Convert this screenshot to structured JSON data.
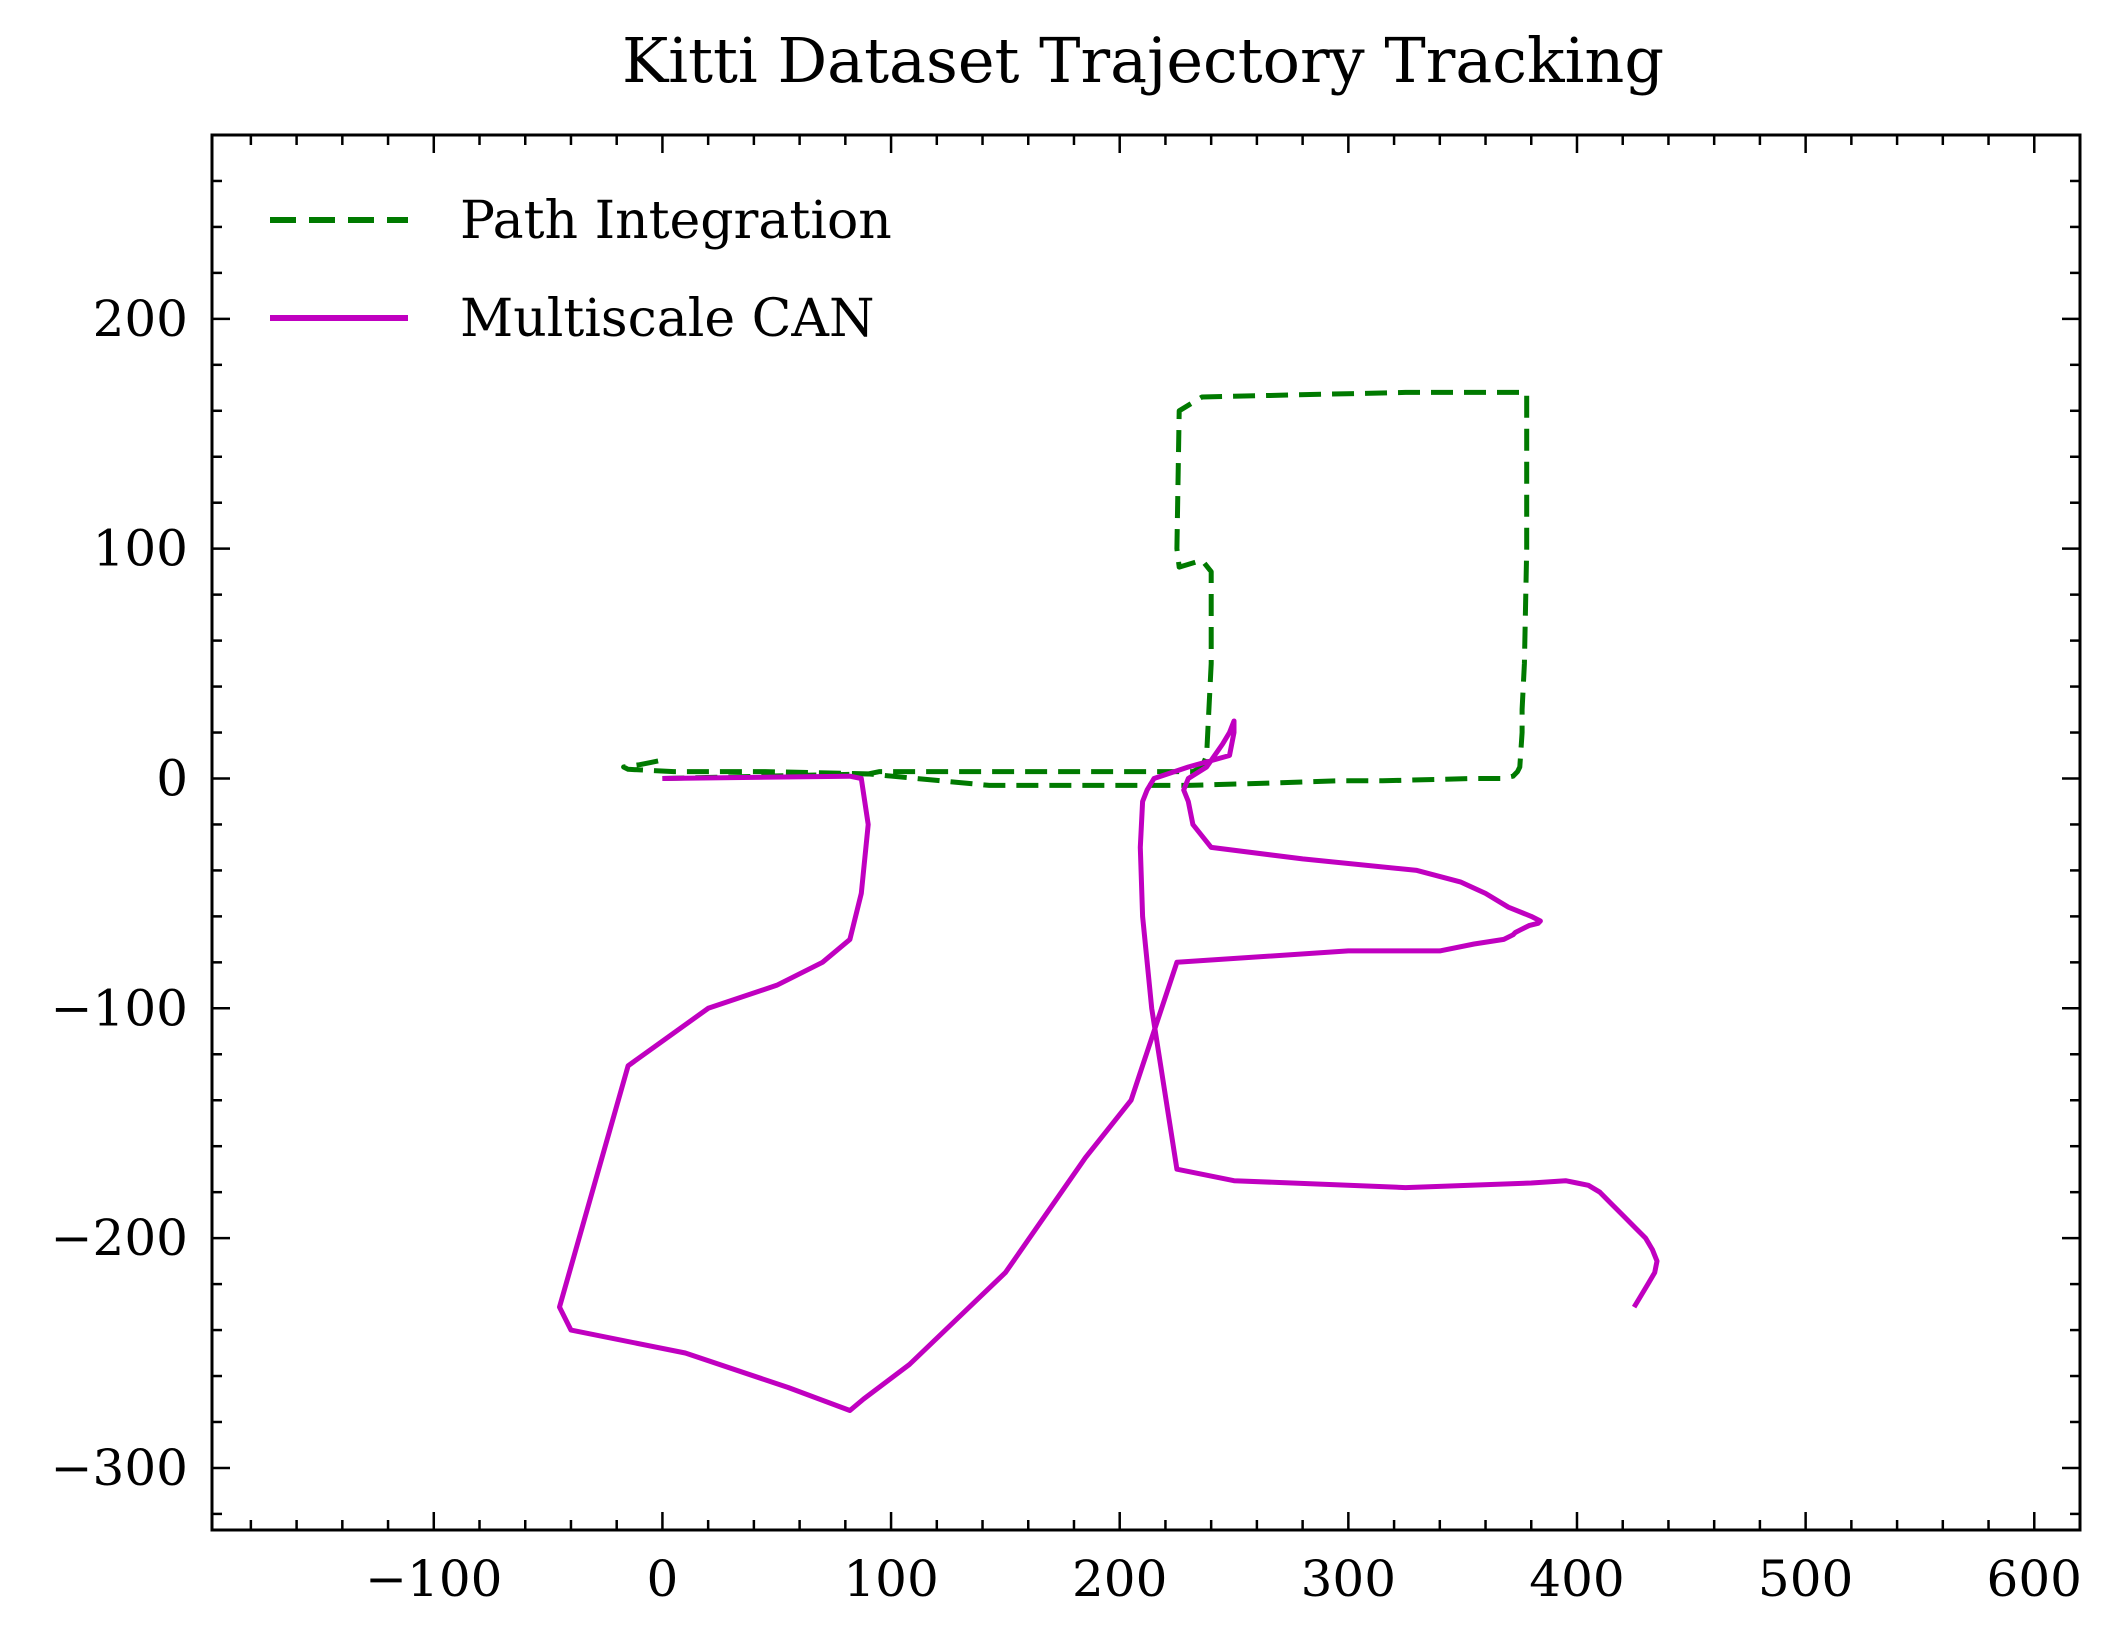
{
  "chart_data": {
    "type": "line",
    "title": "Kitti Dataset Trajectory Tracking",
    "xlabel": "",
    "ylabel": "",
    "xlim": [
      -197,
      620
    ],
    "ylim": [
      -327,
      280
    ],
    "xticks": [
      -100,
      0,
      100,
      200,
      300,
      400,
      500,
      600
    ],
    "yticks": [
      -300,
      -200,
      -100,
      0,
      100,
      200
    ],
    "xtick_labels": [
      "−100",
      "0",
      "100",
      "200",
      "300",
      "400",
      "500",
      "600"
    ],
    "ytick_labels": [
      "−300",
      "−200",
      "−100",
      "0",
      "100",
      "200"
    ],
    "grid": false,
    "legend": "top-left",
    "series": [
      {
        "name": "Path Integration",
        "color": "#007a00",
        "dash": "dashed",
        "x": [
          0,
          90,
          95,
          232,
          236,
          238,
          240,
          240,
          236,
          226,
          225,
          226,
          236,
          325,
          370,
          378,
          378,
          377,
          376,
          376,
          375,
          374,
          372,
          367,
          355,
          315,
          295,
          265,
          230,
          190,
          143,
          90,
          45,
          5,
          -15,
          -17,
          -10,
          -5,
          0
        ],
        "y": [
          0,
          2,
          3,
          3,
          5,
          10,
          50,
          90,
          95,
          92,
          100,
          160,
          166,
          168,
          168,
          168,
          100,
          50,
          30,
          20,
          5,
          3,
          1,
          0,
          0,
          -1,
          -1,
          -2,
          -3,
          -3,
          -3,
          2,
          3,
          3,
          4,
          5,
          6,
          7,
          8
        ],
        "note_free": true
      },
      {
        "name": "Multiscale CAN",
        "color": "#c000c0",
        "dash": "solid",
        "x": [
          0,
          82,
          87,
          90,
          87,
          82,
          70,
          50,
          20,
          -15,
          -45,
          -40,
          10,
          55,
          82,
          88,
          108,
          150,
          185,
          205,
          225,
          300,
          340,
          355,
          368,
          372,
          373,
          375,
          379,
          383,
          384,
          380,
          370,
          360,
          349,
          330,
          280,
          240,
          232,
          230,
          228,
          230,
          238,
          245,
          248,
          250,
          250,
          248,
          230,
          215,
          212,
          210,
          209,
          210,
          214,
          225,
          250,
          325,
          380,
          395,
          400,
          405,
          410,
          415,
          420,
          425,
          430,
          433,
          435,
          434,
          431,
          428,
          425
        ],
        "y": [
          0,
          1,
          0,
          -20,
          -50,
          -70,
          -80,
          -90,
          -100,
          -125,
          -230,
          -240,
          -250,
          -265,
          -275,
          -270,
          -255,
          -215,
          -165,
          -140,
          -80,
          -75,
          -75,
          -72,
          -70,
          -68,
          -67,
          -66,
          -64,
          -63,
          -62,
          -60,
          -56,
          -50,
          -45,
          -40,
          -35,
          -30,
          -20,
          -10,
          -5,
          0,
          5,
          15,
          20,
          25,
          20,
          10,
          5,
          0,
          -5,
          -10,
          -30,
          -60,
          -100,
          -170,
          -175,
          -178,
          -176,
          -175,
          -176,
          -177,
          -180,
          -185,
          -190,
          -195,
          -200,
          -205,
          -210,
          -215,
          -220,
          -225,
          -230
        ],
        "note_free": true
      }
    ]
  }
}
